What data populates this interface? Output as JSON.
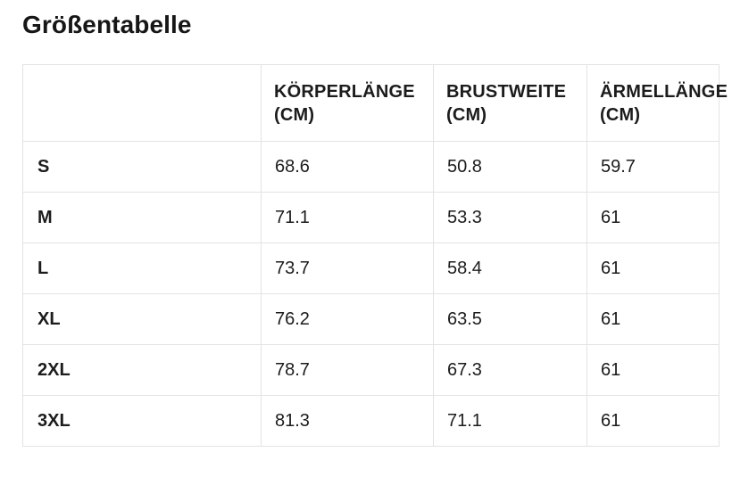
{
  "page": {
    "background": "#ffffff",
    "text_color": "#1a1a1a",
    "border_color": "#e3e3e3"
  },
  "header": {
    "title": "Größentabelle"
  },
  "table": {
    "columns": {
      "size": "",
      "body_length": "KÖRPERLÄNGE (cm)",
      "chest_width": "BRUSTWEITE (cm)",
      "sleeve_length": "ÄRMELLÄNGE (cm)"
    },
    "rows": [
      {
        "size": "S",
        "values": [
          "68.6",
          "50.8",
          "59.7"
        ]
      },
      {
        "size": "M",
        "values": [
          "71.1",
          "53.3",
          "61"
        ]
      },
      {
        "size": "L",
        "values": [
          "73.7",
          "58.4",
          "61"
        ]
      },
      {
        "size": "XL",
        "values": [
          "76.2",
          "63.5",
          "61"
        ]
      },
      {
        "size": "2XL",
        "values": [
          "78.7",
          "67.3",
          "61"
        ]
      },
      {
        "size": "3XL",
        "values": [
          "81.3",
          "71.1",
          "61"
        ]
      }
    ]
  }
}
